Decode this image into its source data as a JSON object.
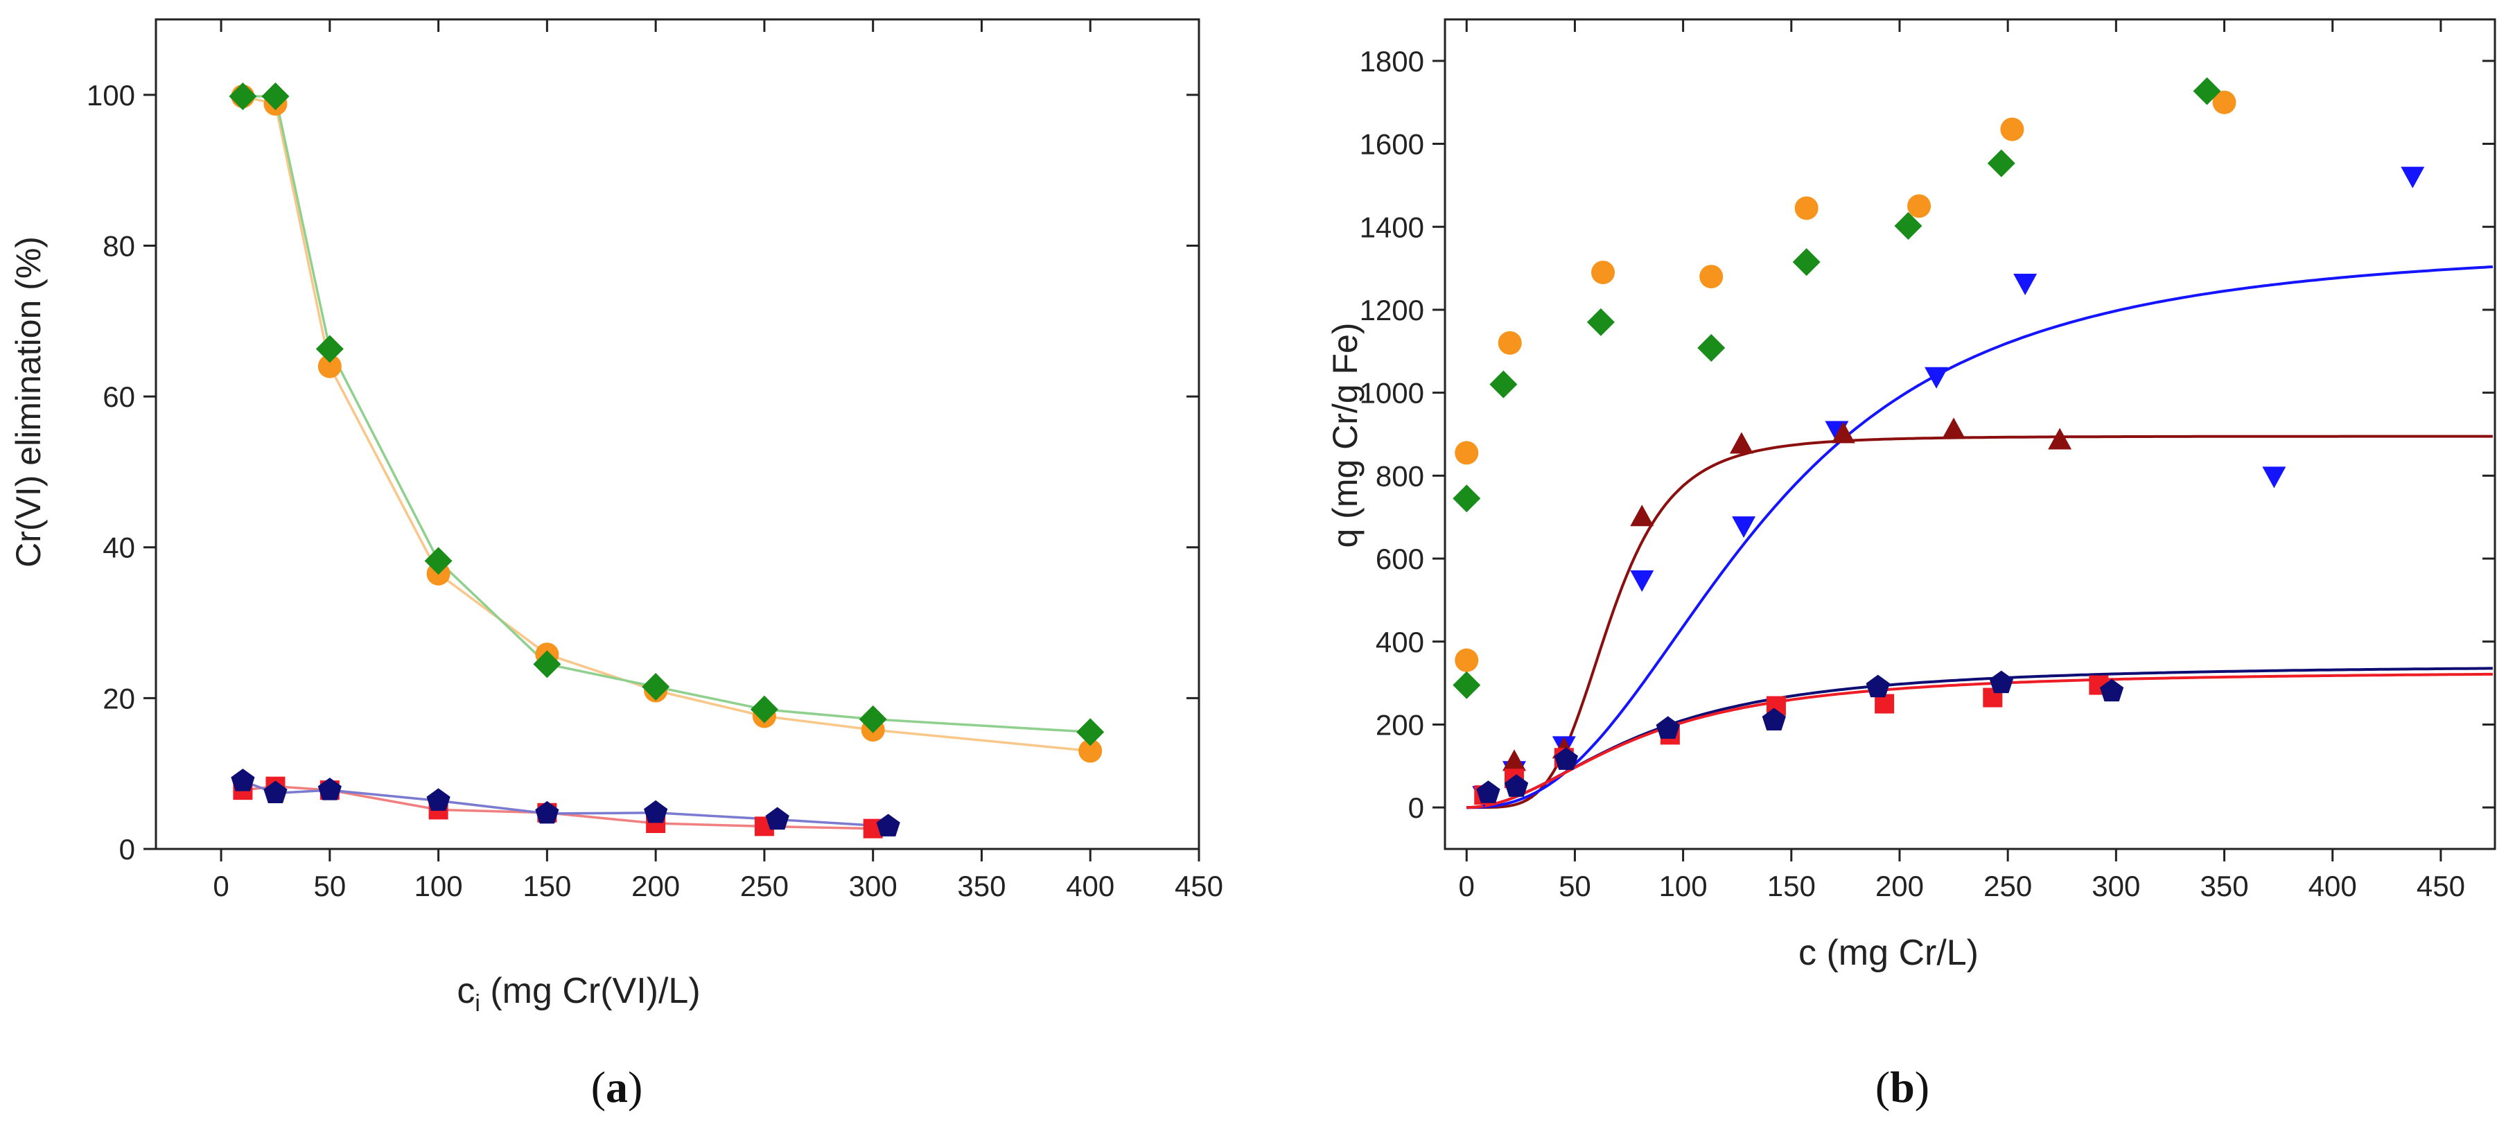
{
  "chart_data": [
    {
      "id": "a",
      "type": "scatter",
      "panel_label": "a",
      "xlabel_main": "c",
      "xlabel_sub": "i",
      "xlabel_rest": " (mg Cr(VI)/L)",
      "ylabel": "Cr(VI) elimination (%)",
      "xlim": [
        -30,
        450
      ],
      "ylim": [
        0,
        110
      ],
      "xticks": [
        0,
        50,
        100,
        150,
        200,
        250,
        300,
        350,
        400,
        450
      ],
      "yticks": [
        0,
        20,
        40,
        60,
        80,
        100
      ],
      "series": [
        {
          "name": "orange",
          "color": "#f7941d",
          "line_color": "#f9c78a",
          "marker": "circle",
          "connect": true,
          "x": [
            10,
            25,
            50,
            100,
            150,
            200,
            250,
            300,
            400
          ],
          "y": [
            99.8,
            98.8,
            64,
            36.5,
            25.8,
            21,
            17.6,
            15.8,
            13
          ]
        },
        {
          "name": "green",
          "color": "#1a8c1a",
          "line_color": "#8fd08f",
          "marker": "diamond",
          "connect": true,
          "x": [
            10,
            25,
            50,
            100,
            150,
            200,
            250,
            300,
            400
          ],
          "y": [
            99.8,
            99.8,
            66.3,
            38.2,
            24.5,
            21.5,
            18.5,
            17.2,
            15.5
          ]
        },
        {
          "name": "red",
          "color": "#ee1c25",
          "line_color": "#f08080",
          "marker": "square",
          "connect": true,
          "x": [
            10,
            25,
            50,
            100,
            150,
            200,
            250,
            300
          ],
          "y": [
            7.8,
            8.3,
            7.8,
            5.2,
            4.8,
            3.4,
            3.0,
            2.7
          ]
        },
        {
          "name": "navy",
          "color": "#0d0d73",
          "line_color": "#7a7ad0",
          "marker": "pentagon",
          "connect": true,
          "x": [
            10,
            25,
            50,
            100,
            150,
            200,
            256,
            307
          ],
          "y": [
            9,
            7.4,
            7.8,
            6.4,
            4.7,
            4.8,
            3.9,
            3.0
          ]
        }
      ]
    },
    {
      "id": "b",
      "type": "scatter",
      "panel_label": "b",
      "xlabel": "c (mg Cr/L)",
      "ylabel": "q (mg Cr/g Fe)",
      "xlim": [
        -10,
        475
      ],
      "ylim": [
        -100,
        1900
      ],
      "xticks": [
        0,
        50,
        100,
        150,
        200,
        250,
        300,
        350,
        400,
        450
      ],
      "yticks": [
        0,
        200,
        400,
        600,
        800,
        1000,
        1200,
        1400,
        1600,
        1800
      ],
      "series": [
        {
          "name": "orange",
          "color": "#f7941d",
          "marker": "circle",
          "x": [
            0,
            0,
            20,
            63,
            113,
            157,
            209,
            252,
            350
          ],
          "y": [
            355,
            855,
            1120,
            1290,
            1280,
            1445,
            1450,
            1635,
            1700
          ]
        },
        {
          "name": "green",
          "color": "#1a8c1a",
          "marker": "diamond",
          "x": [
            0,
            0,
            17,
            62,
            113,
            157,
            204,
            247,
            342
          ],
          "y": [
            295,
            745,
            1020,
            1170,
            1108,
            1315,
            1402,
            1553,
            1727
          ]
        },
        {
          "name": "blue",
          "color": "#1414ff",
          "marker": "triangle-down",
          "x": [
            8,
            22,
            45,
            81,
            128,
            171,
            217,
            258,
            373,
            437
          ],
          "y": [
            30,
            90,
            150,
            550,
            680,
            910,
            1040,
            1265,
            800,
            1523
          ]
        },
        {
          "name": "darkred",
          "color": "#8b0f0f",
          "marker": "triangle-up",
          "x": [
            22,
            45,
            81,
            127,
            174,
            225,
            274
          ],
          "y": [
            110,
            140,
            700,
            875,
            900,
            910,
            885
          ]
        },
        {
          "name": "red",
          "color": "#ee1c25",
          "marker": "square",
          "x": [
            8,
            22,
            45,
            94,
            143,
            193,
            243,
            292
          ],
          "y": [
            30,
            70,
            120,
            175,
            245,
            250,
            265,
            295
          ]
        },
        {
          "name": "navy",
          "color": "#0d0d73",
          "marker": "pentagon",
          "x": [
            10,
            23,
            46,
            93,
            142,
            190,
            247,
            298
          ],
          "y": [
            35,
            50,
            115,
            190,
            210,
            290,
            300,
            280
          ]
        }
      ],
      "fits": [
        {
          "name": "darkred-fit",
          "color": "#8b0f0f",
          "model": "sigmoid",
          "qmax": 895,
          "c50": 66,
          "n": 4.5
        },
        {
          "name": "blue-fit",
          "color": "#1414ff",
          "model": "sigmoid",
          "qmax": 1360,
          "c50": 135,
          "n": 2.5
        },
        {
          "name": "navy-fit",
          "color": "#0d0d73",
          "model": "sigmoid",
          "qmax": 345,
          "c50": 80,
          "n": 2.0
        },
        {
          "name": "red-fit",
          "color": "#ee1c25",
          "model": "sigmoid",
          "qmax": 330,
          "c50": 78,
          "n": 2.0
        }
      ]
    }
  ]
}
